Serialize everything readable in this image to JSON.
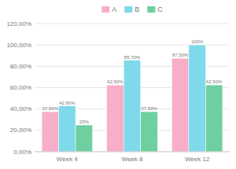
{
  "chart_data": {
    "type": "bar",
    "categories": [
      "Week 4",
      "Week 8",
      "Week 12"
    ],
    "series": [
      {
        "name": "A",
        "color": "#f8aec8",
        "values": [
          37.5,
          62.5,
          87.5
        ],
        "value_labels": [
          "37,50%",
          "62,50%",
          "87,50%"
        ]
      },
      {
        "name": "B",
        "color": "#7ed9ea",
        "values": [
          42.9,
          85.7,
          100.0
        ],
        "value_labels": [
          "42,90%",
          "85,70%",
          "100%"
        ]
      },
      {
        "name": "C",
        "color": "#6ecfa0",
        "values": [
          25.0,
          37.5,
          62.5
        ],
        "value_labels": [
          "25%",
          "37,50%",
          "62,50%"
        ]
      }
    ],
    "ylim": [
      0,
      120
    ],
    "yticks": [
      {
        "value": 0,
        "label": "0,00%"
      },
      {
        "value": 20,
        "label": "20,00%"
      },
      {
        "value": 40,
        "label": "40,00%"
      },
      {
        "value": 60,
        "label": "60,00%"
      },
      {
        "value": 80,
        "label": "80,00%"
      },
      {
        "value": 100,
        "label": "100,00%"
      },
      {
        "value": 120,
        "label": "120,00%"
      }
    ],
    "grid": true,
    "legend": "top",
    "data_labels": true
  }
}
